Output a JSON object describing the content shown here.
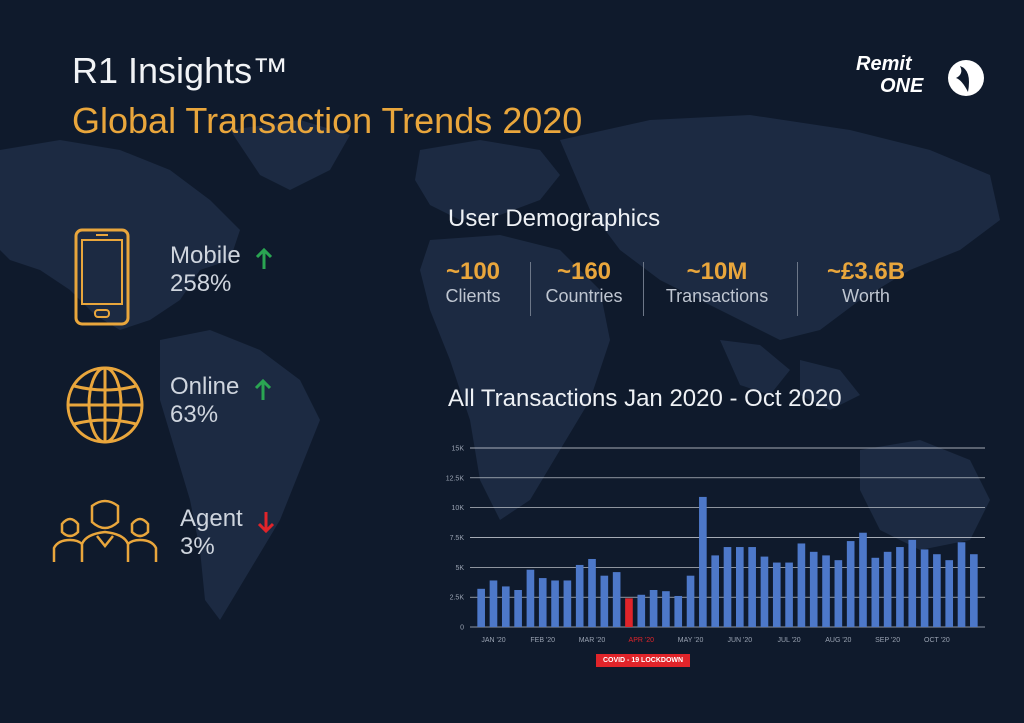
{
  "header": {
    "title_line1": "R1 Insights™",
    "title_line2": "Global Transaction Trends 2020"
  },
  "logo": {
    "line1": "Remit",
    "line2": "ONE",
    "icon": "remitone-swoosh-icon"
  },
  "colors": {
    "background": "#0f1a2c",
    "map": "#1c2a42",
    "accent": "#e9a63c",
    "bar": "#4d78c9",
    "highlight": "#e0242a",
    "up": "#2aa552",
    "down": "#e0242a"
  },
  "channels": [
    {
      "label": "Mobile",
      "value": "258%",
      "trend": "up",
      "icon": "smartphone-icon"
    },
    {
      "label": "Online",
      "value": "63%",
      "trend": "up",
      "icon": "globe-icon"
    },
    {
      "label": "Agent",
      "value": "3%",
      "trend": "down",
      "icon": "agents-group-icon"
    }
  ],
  "demographics": {
    "title": "User Demographics",
    "items": [
      {
        "value": "~100",
        "label": "Clients"
      },
      {
        "value": "~160",
        "label": "Countries"
      },
      {
        "value": "~10M",
        "label": "Transactions"
      },
      {
        "value": "~£3.6B",
        "label": "Worth"
      }
    ]
  },
  "chart_title": "All Transactions Jan 2020 - Oct 2020",
  "covid_label": "COVID - 19 LOCKDOWN",
  "chart_data": {
    "type": "bar",
    "title": "All Transactions Jan 2020 - Oct 2020",
    "xlabel": "",
    "ylabel": "",
    "ylim": [
      0,
      15000
    ],
    "yticks": [
      0,
      2500,
      5000,
      7500,
      10000,
      12500,
      15000
    ],
    "ytick_labels": [
      "0",
      "2.5K",
      "5K",
      "7.5K",
      "10K",
      "12.5K",
      "15K"
    ],
    "grid": true,
    "month_labels": [
      "JAN '20",
      "FEB '20",
      "MAR '20",
      "APR '20",
      "MAY '20",
      "JUN '20",
      "JUL '20",
      "AUG '20",
      "SEP '20",
      "OCT '20"
    ],
    "month_label_at_bar": [
      1,
      5,
      9,
      13,
      17,
      21,
      25,
      29,
      33,
      37
    ],
    "highlight_month_label": "APR '20",
    "highlight_bar_index": 12,
    "values": [
      3200,
      3900,
      3400,
      3100,
      4800,
      4100,
      3900,
      3900,
      5200,
      5700,
      4300,
      4600,
      2400,
      2700,
      3100,
      3000,
      2600,
      4300,
      10900,
      6000,
      6700,
      6700,
      6700,
      5900,
      5400,
      5400,
      7000,
      6300,
      6000,
      5600,
      7200,
      7900,
      5800,
      6300,
      6700,
      7300,
      6500,
      6100,
      5600,
      7100,
      6100
    ]
  }
}
